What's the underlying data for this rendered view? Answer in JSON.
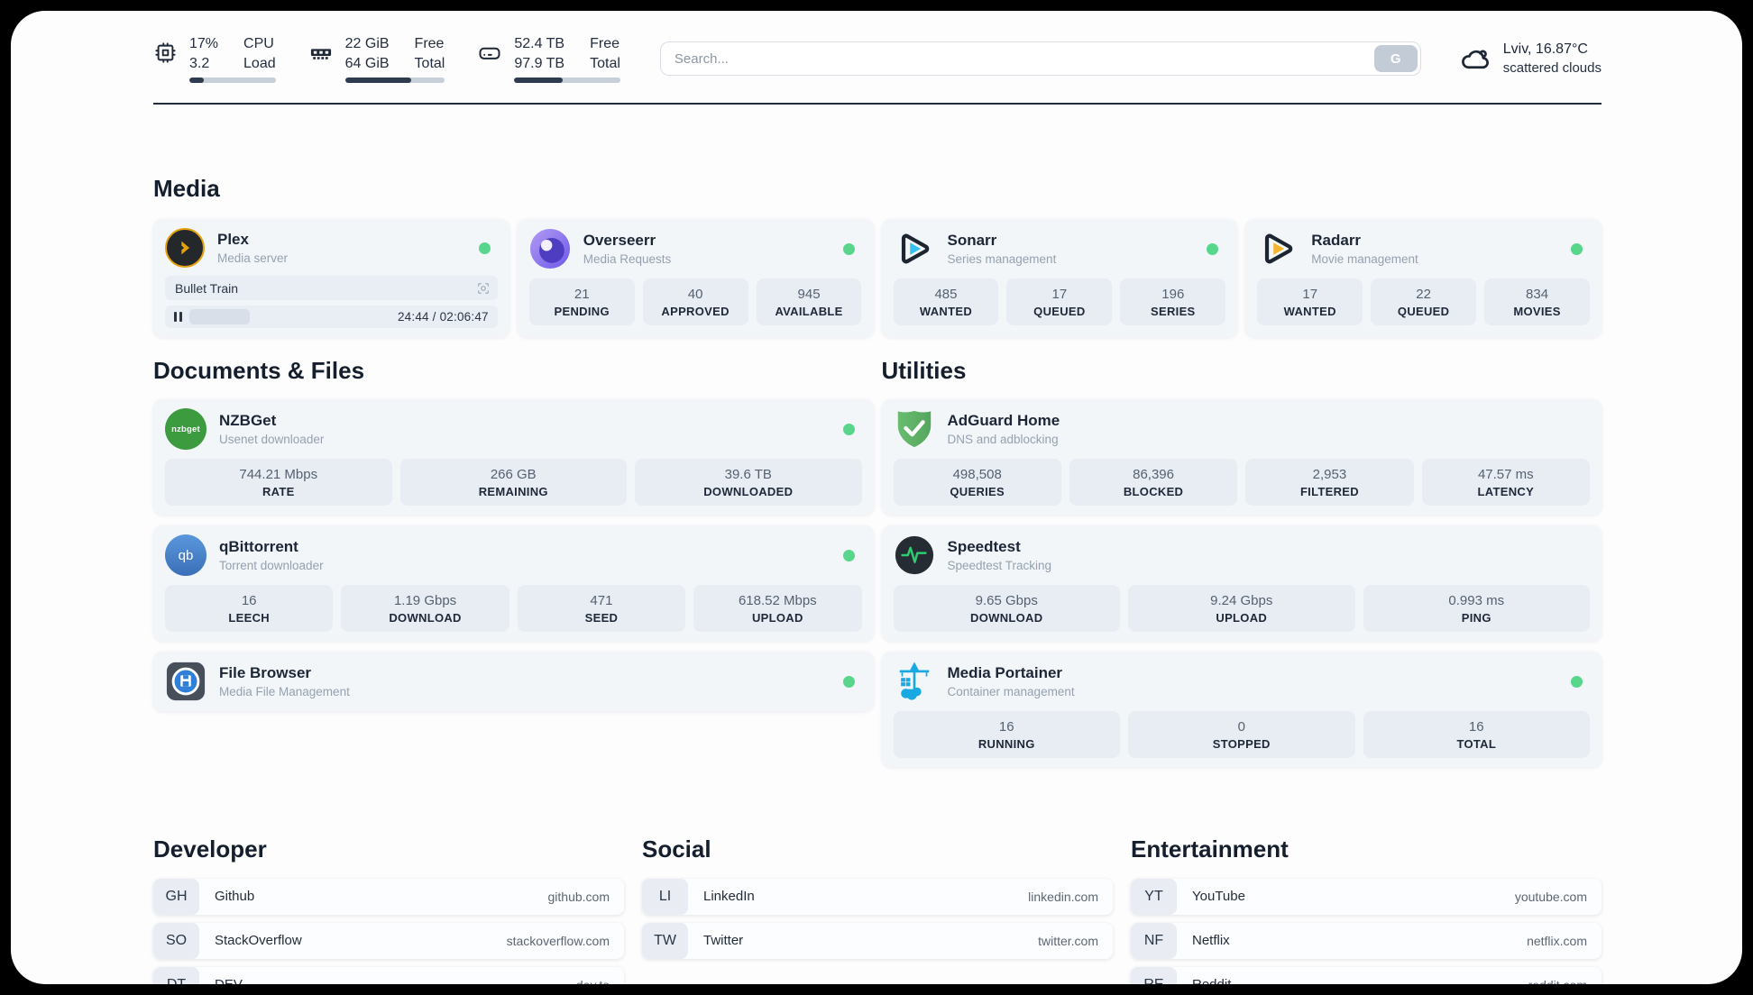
{
  "header": {
    "cpu": {
      "values": [
        "17%",
        "3.2"
      ],
      "labels": [
        "CPU",
        "Load"
      ],
      "bar_percent": 17
    },
    "ram": {
      "values": [
        "22 GiB",
        "64 GiB"
      ],
      "labels": [
        "Free",
        "Total"
      ],
      "bar_percent": 66
    },
    "disk": {
      "values": [
        "52.4 TB",
        "97.9 TB"
      ],
      "labels": [
        "Free",
        "Total"
      ],
      "bar_percent": 46
    },
    "search": {
      "placeholder": "Search...",
      "button_label": "G"
    },
    "weather": {
      "location": "Lviv, 16.87°C",
      "condition": "scattered clouds"
    }
  },
  "media": {
    "title": "Media",
    "plex": {
      "name": "Plex",
      "subtitle": "Media server",
      "online": true,
      "now_playing": "Bullet Train",
      "time": "24:44 / 02:06:47",
      "progress_percent": 19
    },
    "overseerr": {
      "name": "Overseerr",
      "subtitle": "Media Requests",
      "online": true,
      "stats": [
        {
          "value": "21",
          "label": "PENDING"
        },
        {
          "value": "40",
          "label": "APPROVED"
        },
        {
          "value": "945",
          "label": "AVAILABLE"
        }
      ]
    },
    "sonarr": {
      "name": "Sonarr",
      "subtitle": "Series management",
      "online": true,
      "stats": [
        {
          "value": "485",
          "label": "WANTED"
        },
        {
          "value": "17",
          "label": "QUEUED"
        },
        {
          "value": "196",
          "label": "SERIES"
        }
      ]
    },
    "radarr": {
      "name": "Radarr",
      "subtitle": "Movie management",
      "online": true,
      "stats": [
        {
          "value": "17",
          "label": "WANTED"
        },
        {
          "value": "22",
          "label": "QUEUED"
        },
        {
          "value": "834",
          "label": "MOVIES"
        }
      ]
    }
  },
  "documents": {
    "title": "Documents & Files",
    "nzbget": {
      "name": "NZBGet",
      "subtitle": "Usenet downloader",
      "online": true,
      "logo_text": "nzbget",
      "stats": [
        {
          "value": "744.21 Mbps",
          "label": "RATE"
        },
        {
          "value": "266 GB",
          "label": "REMAINING"
        },
        {
          "value": "39.6 TB",
          "label": "DOWNLOADED"
        }
      ]
    },
    "qbittorrent": {
      "name": "qBittorrent",
      "subtitle": "Torrent downloader",
      "online": true,
      "logo_text": "qb",
      "stats": [
        {
          "value": "16",
          "label": "LEECH"
        },
        {
          "value": "1.19 Gbps",
          "label": "DOWNLOAD"
        },
        {
          "value": "471",
          "label": "SEED"
        },
        {
          "value": "618.52 Mbps",
          "label": "UPLOAD"
        }
      ]
    },
    "filebrowser": {
      "name": "File Browser",
      "subtitle": "Media File Management",
      "online": true
    }
  },
  "utilities": {
    "title": "Utilities",
    "adguard": {
      "name": "AdGuard Home",
      "subtitle": "DNS and adblocking",
      "stats": [
        {
          "value": "498,508",
          "label": "QUERIES"
        },
        {
          "value": "86,396",
          "label": "BLOCKED"
        },
        {
          "value": "2,953",
          "label": "FILTERED"
        },
        {
          "value": "47.57 ms",
          "label": "LATENCY"
        }
      ]
    },
    "speedtest": {
      "name": "Speedtest",
      "subtitle": "Speedtest Tracking",
      "stats": [
        {
          "value": "9.65 Gbps",
          "label": "DOWNLOAD"
        },
        {
          "value": "9.24 Gbps",
          "label": "UPLOAD"
        },
        {
          "value": "0.993 ms",
          "label": "PING"
        }
      ]
    },
    "portainer": {
      "name": "Media Portainer",
      "subtitle": "Container management",
      "online": true,
      "stats": [
        {
          "value": "16",
          "label": "RUNNING"
        },
        {
          "value": "0",
          "label": "STOPPED"
        },
        {
          "value": "16",
          "label": "TOTAL"
        }
      ]
    }
  },
  "bookmarks": {
    "developer": {
      "title": "Developer",
      "items": [
        {
          "badge": "GH",
          "name": "Github",
          "url": "github.com"
        },
        {
          "badge": "SO",
          "name": "StackOverflow",
          "url": "stackoverflow.com"
        },
        {
          "badge": "DT",
          "name": "DEV",
          "url": "dev.to"
        }
      ]
    },
    "social": {
      "title": "Social",
      "items": [
        {
          "badge": "LI",
          "name": "LinkedIn",
          "url": "linkedin.com"
        },
        {
          "badge": "TW",
          "name": "Twitter",
          "url": "twitter.com"
        }
      ]
    },
    "entertainment": {
      "title": "Entertainment",
      "items": [
        {
          "badge": "YT",
          "name": "YouTube",
          "url": "youtube.com"
        },
        {
          "badge": "NF",
          "name": "Netflix",
          "url": "netflix.com"
        },
        {
          "badge": "RE",
          "name": "Reddit",
          "url": "reddit.com"
        }
      ]
    }
  },
  "colors": {
    "status_online": "#57d68c",
    "plex_gold": "#e5a00d",
    "sonarr_cyan": "#36c3f1",
    "radarr_amber": "#f6b52e",
    "nzbget_green": "#3c9a3f",
    "qbittorrent_blue": "#4a82c4",
    "adguard_green": "#60b765",
    "speedtest_green": "#2ecc71",
    "portainer_blue": "#18a9e3",
    "progress_fill": "#2e3a4e"
  }
}
